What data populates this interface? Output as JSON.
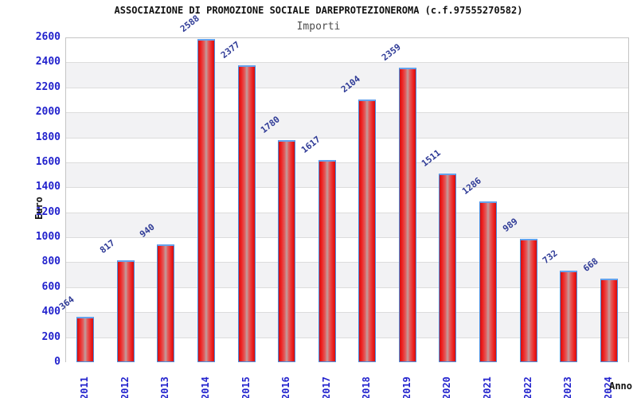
{
  "title": "ASSOCIAZIONE DI PROMOZIONE SOCIALE DAREPROTEZIONEROMA (c.f.97555270582)",
  "subtitle": "Importi",
  "chart_data": {
    "type": "bar",
    "title": "ASSOCIAZIONE DI PROMOZIONE SOCIALE DAREPROTEZIONEROMA (c.f.97555270582)",
    "subtitle": "Importi",
    "xlabel": "Anno",
    "ylabel": "Euro",
    "categories": [
      "2011",
      "2012",
      "2013",
      "2014",
      "2015",
      "2016",
      "2017",
      "2018",
      "2019",
      "2020",
      "2021",
      "2022",
      "2023",
      "2024"
    ],
    "values": [
      364,
      817,
      940,
      2588,
      2377,
      1780,
      1617,
      2104,
      2359,
      1511,
      1286,
      989,
      732,
      668
    ],
    "ylim": [
      0,
      2600
    ],
    "ytick_step": 200,
    "grid": true,
    "legend_position": "none",
    "colors": {
      "bar_fill": "#e02020",
      "bar_fill_center": "#bf9f9f",
      "bar_border": "#4b8ee0",
      "tick_label": "#2323cd",
      "value_label": "#2e3a96",
      "band_gray": "#f2f2f4",
      "band_white": "#ffffff",
      "gridline": "#dcdcdc",
      "plot_border": "#c4c4c4",
      "title_color": "#111111",
      "subtitle_color": "#4d4d4d"
    }
  }
}
